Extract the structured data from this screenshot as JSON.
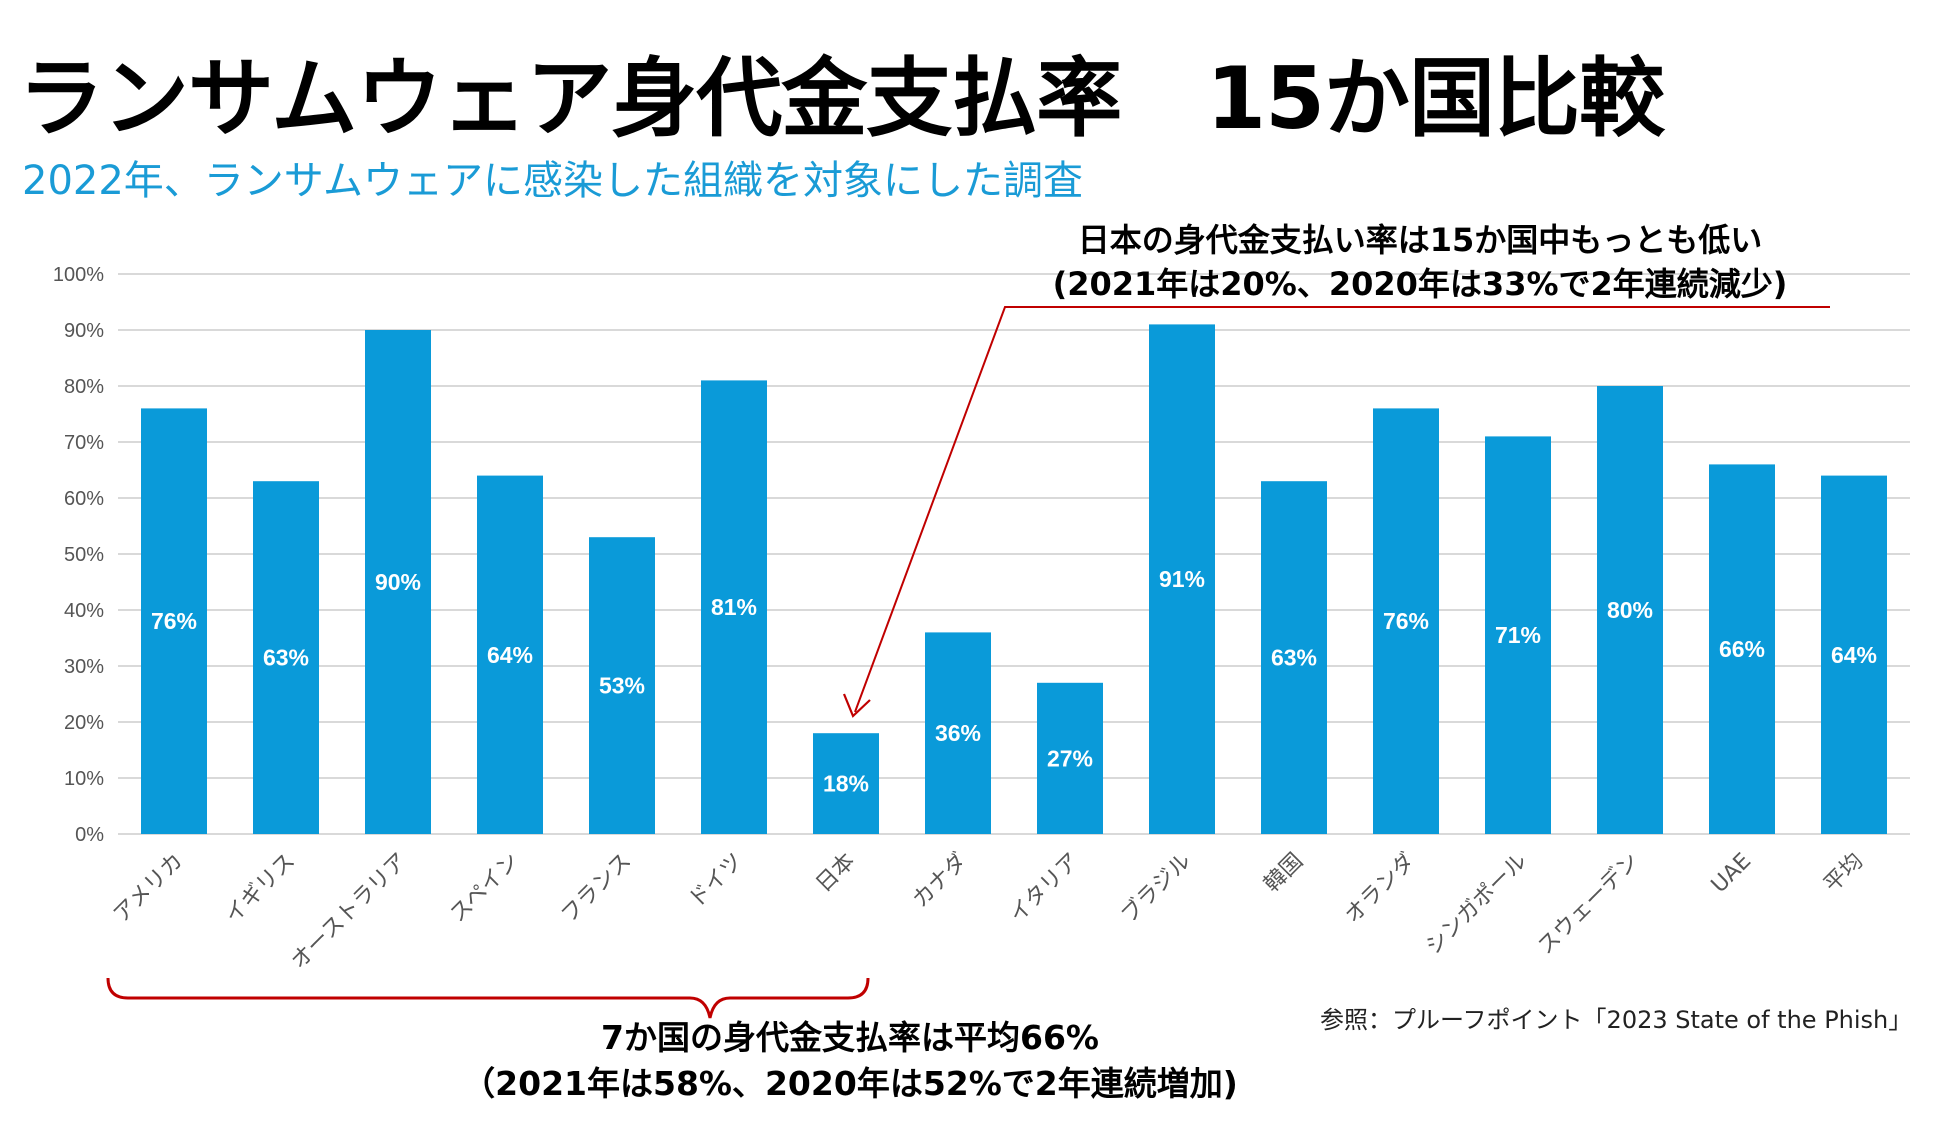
{
  "title": "ランサムウェア身代金支払率　15か国比較",
  "subtitle": "2022年、ランサムウェアに感染した組織を対象にした調査",
  "callout": {
    "line1": "日本の身代金支払い率は15か国中もっとも低い",
    "line2": "(2021年は20%、2020年は33%で2年連続減少)"
  },
  "summary": {
    "line1": "7か国の身代金支払率は平均66%",
    "line2": "（2021年は58%、2020年は52%で2年連続増加)"
  },
  "source": "参照：プルーフポイント「2023 State of the Phish」",
  "colors": {
    "bar": "#0a9ad9",
    "annotation": "#c00000",
    "grid": "#d9d9d9",
    "subtitle": "#1a9bd6"
  },
  "chart_data": {
    "type": "bar",
    "title": "ランサムウェア身代金支払率　15か国比較",
    "xlabel": "",
    "ylabel": "",
    "ylim": [
      0,
      100
    ],
    "yticks": [
      "0%",
      "10%",
      "20%",
      "30%",
      "40%",
      "50%",
      "60%",
      "70%",
      "80%",
      "90%",
      "100%"
    ],
    "grid": true,
    "categories": [
      "アメリカ",
      "イギリス",
      "オーストラリア",
      "スペイン",
      "フランス",
      "ドイツ",
      "日本",
      "カナダ",
      "イタリア",
      "ブラジル",
      "韓国",
      "オランダ",
      "シンガポール",
      "スウェーデン",
      "UAE",
      "平均"
    ],
    "values": [
      76,
      63,
      90,
      64,
      53,
      81,
      18,
      36,
      27,
      91,
      63,
      76,
      71,
      80,
      66,
      64
    ],
    "data_labels": [
      "76%",
      "63%",
      "90%",
      "64%",
      "53%",
      "81%",
      "18%",
      "36%",
      "27%",
      "91%",
      "63%",
      "76%",
      "71%",
      "80%",
      "66%",
      "64%"
    ]
  }
}
